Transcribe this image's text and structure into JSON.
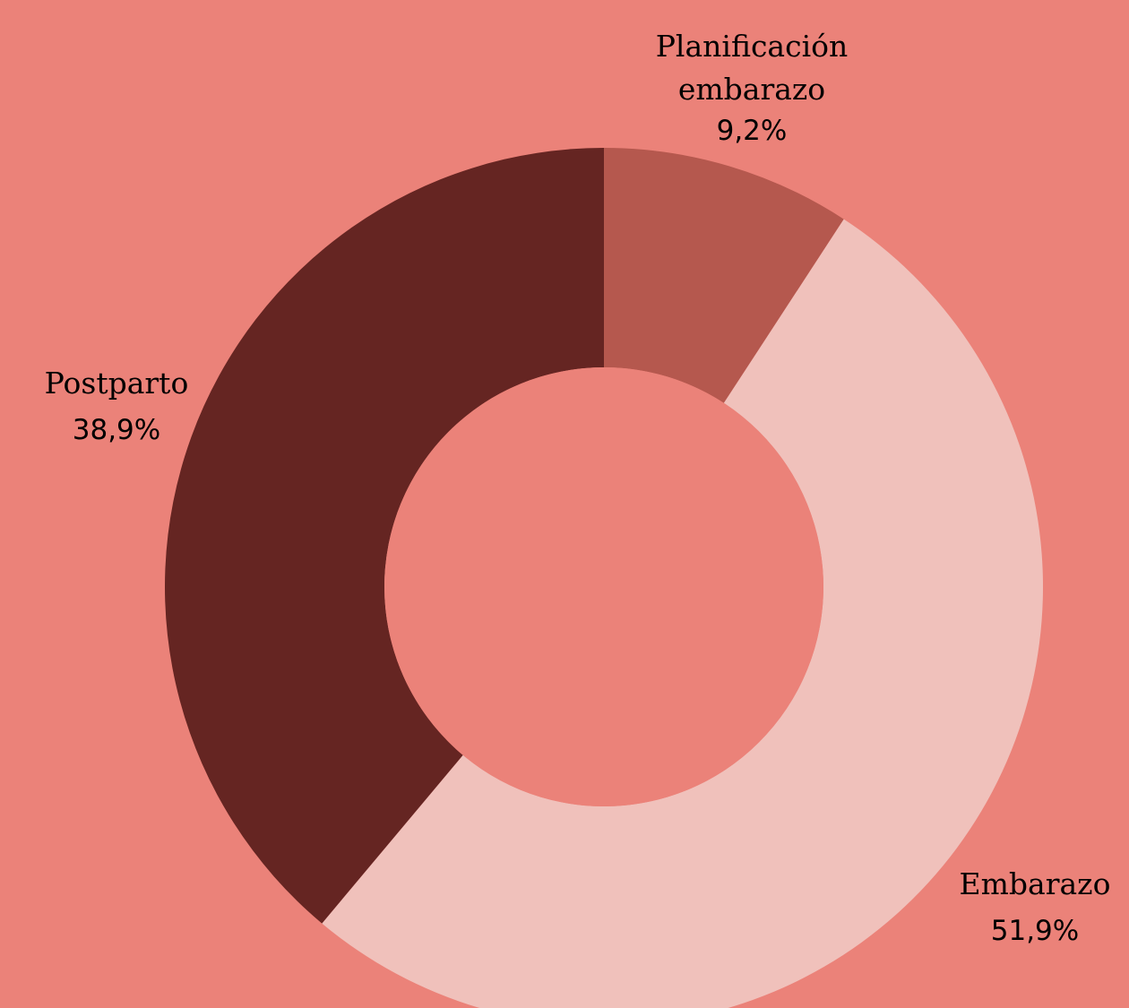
{
  "chart_data": {
    "type": "pie",
    "donut": true,
    "background": "#EB8279",
    "slices": [
      {
        "name": "Planificación",
        "name2": "embarazo",
        "value": 9.2,
        "label": "9,2%",
        "color": "#B5584E"
      },
      {
        "name": "Embarazo",
        "name2": "",
        "value": 51.9,
        "label": "51,9%",
        "color": "#F0C1BB"
      },
      {
        "name": "Postparto",
        "name2": "",
        "value": 38.9,
        "label": "38,9%",
        "color": "#652522"
      }
    ]
  }
}
